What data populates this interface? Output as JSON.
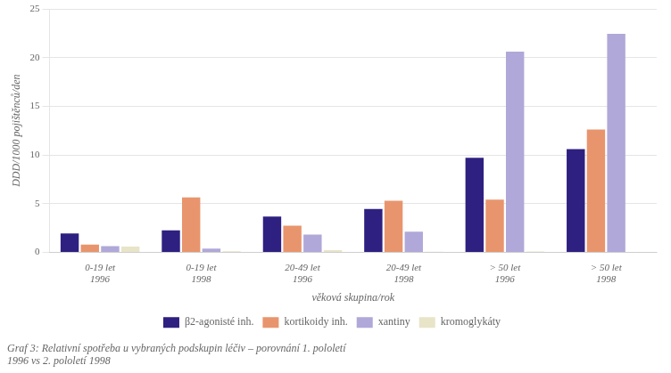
{
  "chart_data": {
    "type": "bar",
    "subtitle": "Graf 3: Relativní spotřeba u vybraných podskupin léčiv – porovnání 1. pololetí\n1996 vs 2. pololetí 1998",
    "xlabel": "věková skupina/rok",
    "ylabel": "DDD/1000 pojištěnců/den",
    "categories": [
      "0-19 let\n1996",
      "0-19 let\n1998",
      "20-49 let\n1996",
      "20-49 let\n1998",
      "> 50 let\n1996",
      "> 50 let\n1998"
    ],
    "series": [
      {
        "name": "β2-agonisté inh.",
        "color": "#2e2080",
        "values": [
          1.93,
          2.25,
          3.68,
          4.45,
          9.71,
          10.6
        ]
      },
      {
        "name": "kortikoidy inh.",
        "color": "#e8956d",
        "values": [
          0.78,
          5.63,
          2.73,
          5.29,
          5.4,
          12.6
        ]
      },
      {
        "name": "xantiny",
        "color": "#b0a8d8",
        "values": [
          0.63,
          0.39,
          1.81,
          2.12,
          20.62,
          22.43
        ]
      },
      {
        "name": "kromoglykáty",
        "color": "#e8e4c8",
        "values": [
          0.58,
          0.11,
          0.22,
          0.07,
          0.08,
          0.04
        ]
      }
    ],
    "ylim": [
      0,
      25
    ],
    "yticks": [
      0,
      5,
      10,
      15,
      20,
      25
    ],
    "grid": true,
    "legend": "bottom"
  }
}
